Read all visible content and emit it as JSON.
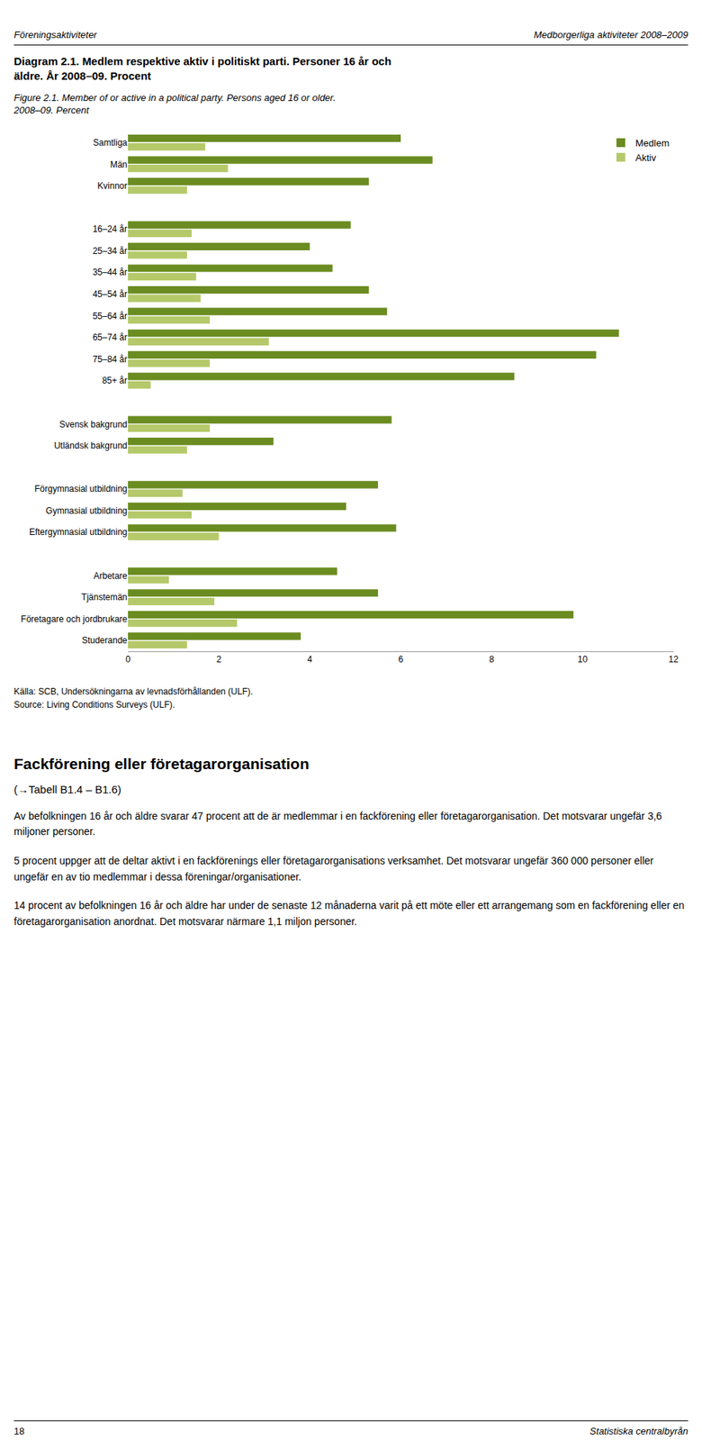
{
  "chart_data": {
    "type": "bar",
    "orientation": "horizontal",
    "title": "Diagram 2.1. Medlem respektive aktiv i politiskt parti. Personer 16 år och\näldre. År 2008–09. Procent",
    "subtitle": "Figure 2.1. Member of or active in a political party. Persons aged 16 or older.\n2008–09. Percent",
    "categories": [
      "Samtliga",
      "Män",
      "Kvinnor",
      null,
      "16–24 år",
      "25–34 år",
      "35–44 år",
      "45–54 år",
      "55–64 år",
      "65–74 år",
      "75–84 år",
      "85+ år",
      null,
      "Svensk bakgrund",
      "Utländsk bakgrund",
      null,
      "Förgymnasial utbildning",
      "Gymnasial utbildning",
      "Eftergymnasial utbildning",
      null,
      "Arbetare",
      "Tjänstemän",
      "Företagare och jordbrukare",
      "Studerande"
    ],
    "series": [
      {
        "name": "Medlem",
        "color": "#6b8c21",
        "values": [
          6.0,
          6.7,
          5.3,
          null,
          4.9,
          4.0,
          4.5,
          5.3,
          5.7,
          10.8,
          10.3,
          8.5,
          null,
          5.8,
          3.2,
          null,
          5.5,
          4.8,
          5.9,
          null,
          4.6,
          5.5,
          9.8,
          3.8
        ]
      },
      {
        "name": "Aktiv",
        "color": "#b5c96a",
        "values": [
          1.7,
          2.2,
          1.3,
          null,
          1.4,
          1.3,
          1.5,
          1.6,
          1.8,
          3.1,
          1.8,
          0.5,
          null,
          1.8,
          1.3,
          null,
          1.2,
          1.4,
          2.0,
          null,
          0.9,
          1.9,
          2.4,
          1.3
        ]
      }
    ],
    "xlim": [
      0,
      12
    ],
    "xticks": [
      0,
      2,
      4,
      6,
      8,
      10,
      12
    ],
    "grid": true,
    "legend": "upper right",
    "annotations": [
      "Föreningsaktiviteter",
      "Medborgerliga aktiviteter 2008–2009",
      "Källa: SCB, Undersökningarna av levnadsförhållanden (ULF).",
      "Source: Living Conditions Surveys (ULF).",
      "Fackförening eller företagarorganisation",
      "(→Tabell B1.4 – B1.6)",
      "Av befolkningen 16 år och äldre svarar 47 procent att de är medlemmar i en fackförening eller företagarorganisation. Det motsvarar ungefär 3,6 miljoner personer.",
      "5 procent uppger att de deltar aktivt i en fackförenings eller företagarorganisations verksamhet. Det motsvarar ungefär 360 000 personer eller ungefär en av tio medlemmar i dessa föreningar/organisationer.",
      "14 procent av befolkningen 16 år och äldre har under de senaste 12 månaderna varit på ett möte eller ett arrangemang som en fackförening eller en företagarorganisation anordnat. Det motsvarar närmare 1,1 miljon personer.",
      "18",
      "Statistiska centralbyrån"
    ]
  }
}
